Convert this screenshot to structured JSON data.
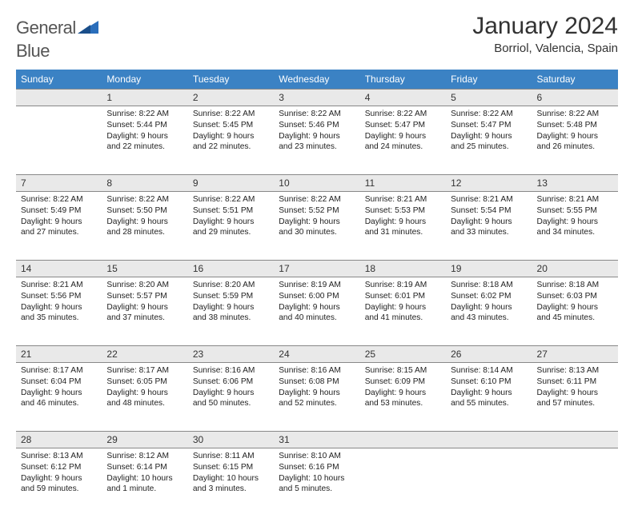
{
  "logo": {
    "text1": "General",
    "text2": "Blue"
  },
  "title": "January 2024",
  "location": "Borriol, Valencia, Spain",
  "colors": {
    "header_bg": "#3b82c4",
    "header_text": "#ffffff",
    "daynum_bg": "#e9e9e9",
    "page_bg": "#ffffff",
    "text": "#222222",
    "logo_gray": "#555555",
    "logo_blue": "#2a6ebb"
  },
  "weekdays": [
    "Sunday",
    "Monday",
    "Tuesday",
    "Wednesday",
    "Thursday",
    "Friday",
    "Saturday"
  ],
  "weeks": [
    {
      "nums": [
        "",
        "1",
        "2",
        "3",
        "4",
        "5",
        "6"
      ],
      "cells": [
        null,
        {
          "sunrise": "8:22 AM",
          "sunset": "5:44 PM",
          "daylight": "9 hours and 22 minutes."
        },
        {
          "sunrise": "8:22 AM",
          "sunset": "5:45 PM",
          "daylight": "9 hours and 22 minutes."
        },
        {
          "sunrise": "8:22 AM",
          "sunset": "5:46 PM",
          "daylight": "9 hours and 23 minutes."
        },
        {
          "sunrise": "8:22 AM",
          "sunset": "5:47 PM",
          "daylight": "9 hours and 24 minutes."
        },
        {
          "sunrise": "8:22 AM",
          "sunset": "5:47 PM",
          "daylight": "9 hours and 25 minutes."
        },
        {
          "sunrise": "8:22 AM",
          "sunset": "5:48 PM",
          "daylight": "9 hours and 26 minutes."
        }
      ]
    },
    {
      "nums": [
        "7",
        "8",
        "9",
        "10",
        "11",
        "12",
        "13"
      ],
      "cells": [
        {
          "sunrise": "8:22 AM",
          "sunset": "5:49 PM",
          "daylight": "9 hours and 27 minutes."
        },
        {
          "sunrise": "8:22 AM",
          "sunset": "5:50 PM",
          "daylight": "9 hours and 28 minutes."
        },
        {
          "sunrise": "8:22 AM",
          "sunset": "5:51 PM",
          "daylight": "9 hours and 29 minutes."
        },
        {
          "sunrise": "8:22 AM",
          "sunset": "5:52 PM",
          "daylight": "9 hours and 30 minutes."
        },
        {
          "sunrise": "8:21 AM",
          "sunset": "5:53 PM",
          "daylight": "9 hours and 31 minutes."
        },
        {
          "sunrise": "8:21 AM",
          "sunset": "5:54 PM",
          "daylight": "9 hours and 33 minutes."
        },
        {
          "sunrise": "8:21 AM",
          "sunset": "5:55 PM",
          "daylight": "9 hours and 34 minutes."
        }
      ]
    },
    {
      "nums": [
        "14",
        "15",
        "16",
        "17",
        "18",
        "19",
        "20"
      ],
      "cells": [
        {
          "sunrise": "8:21 AM",
          "sunset": "5:56 PM",
          "daylight": "9 hours and 35 minutes."
        },
        {
          "sunrise": "8:20 AM",
          "sunset": "5:57 PM",
          "daylight": "9 hours and 37 minutes."
        },
        {
          "sunrise": "8:20 AM",
          "sunset": "5:59 PM",
          "daylight": "9 hours and 38 minutes."
        },
        {
          "sunrise": "8:19 AM",
          "sunset": "6:00 PM",
          "daylight": "9 hours and 40 minutes."
        },
        {
          "sunrise": "8:19 AM",
          "sunset": "6:01 PM",
          "daylight": "9 hours and 41 minutes."
        },
        {
          "sunrise": "8:18 AM",
          "sunset": "6:02 PM",
          "daylight": "9 hours and 43 minutes."
        },
        {
          "sunrise": "8:18 AM",
          "sunset": "6:03 PM",
          "daylight": "9 hours and 45 minutes."
        }
      ]
    },
    {
      "nums": [
        "21",
        "22",
        "23",
        "24",
        "25",
        "26",
        "27"
      ],
      "cells": [
        {
          "sunrise": "8:17 AM",
          "sunset": "6:04 PM",
          "daylight": "9 hours and 46 minutes."
        },
        {
          "sunrise": "8:17 AM",
          "sunset": "6:05 PM",
          "daylight": "9 hours and 48 minutes."
        },
        {
          "sunrise": "8:16 AM",
          "sunset": "6:06 PM",
          "daylight": "9 hours and 50 minutes."
        },
        {
          "sunrise": "8:16 AM",
          "sunset": "6:08 PM",
          "daylight": "9 hours and 52 minutes."
        },
        {
          "sunrise": "8:15 AM",
          "sunset": "6:09 PM",
          "daylight": "9 hours and 53 minutes."
        },
        {
          "sunrise": "8:14 AM",
          "sunset": "6:10 PM",
          "daylight": "9 hours and 55 minutes."
        },
        {
          "sunrise": "8:13 AM",
          "sunset": "6:11 PM",
          "daylight": "9 hours and 57 minutes."
        }
      ]
    },
    {
      "nums": [
        "28",
        "29",
        "30",
        "31",
        "",
        "",
        ""
      ],
      "cells": [
        {
          "sunrise": "8:13 AM",
          "sunset": "6:12 PM",
          "daylight": "9 hours and 59 minutes."
        },
        {
          "sunrise": "8:12 AM",
          "sunset": "6:14 PM",
          "daylight": "10 hours and 1 minute."
        },
        {
          "sunrise": "8:11 AM",
          "sunset": "6:15 PM",
          "daylight": "10 hours and 3 minutes."
        },
        {
          "sunrise": "8:10 AM",
          "sunset": "6:16 PM",
          "daylight": "10 hours and 5 minutes."
        },
        null,
        null,
        null
      ]
    }
  ],
  "labels": {
    "sunrise": "Sunrise:",
    "sunset": "Sunset:",
    "daylight": "Daylight:"
  }
}
